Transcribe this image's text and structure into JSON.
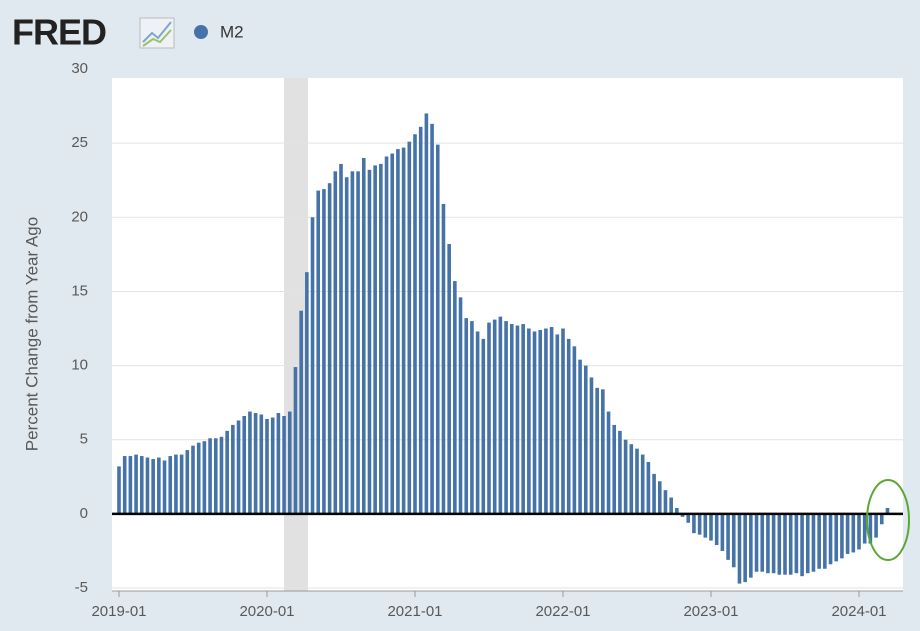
{
  "logo": "FRED",
  "chart_data": {
    "type": "bar",
    "legend": "M2",
    "y_label": "Percent Change from Year Ago",
    "color": "#4572a7",
    "grid": true,
    "ylim": [
      -5.2,
      30
    ],
    "yticks": [
      -5,
      0,
      5,
      10,
      15,
      20,
      25,
      30
    ],
    "categories": [
      "2019-01",
      null,
      null,
      null,
      null,
      null,
      null,
      null,
      null,
      null,
      null,
      null,
      null,
      null,
      null,
      null,
      null,
      null,
      null,
      null,
      null,
      null,
      null,
      null,
      null,
      null,
      "2020-01",
      null,
      null,
      null,
      null,
      null,
      null,
      null,
      null,
      null,
      null,
      null,
      null,
      null,
      null,
      null,
      null,
      null,
      null,
      null,
      null,
      null,
      null,
      null,
      null,
      null,
      "2021-01",
      null,
      null,
      null,
      null,
      null,
      null,
      null,
      null,
      null,
      null,
      null,
      null,
      null,
      null,
      null,
      null,
      null,
      null,
      null,
      null,
      null,
      null,
      null,
      null,
      null,
      "2022-01",
      null,
      null,
      null,
      null,
      null,
      null,
      null,
      null,
      null,
      null,
      null,
      null,
      null,
      null,
      null,
      null,
      null,
      null,
      null,
      null,
      null,
      null,
      null,
      null,
      null,
      "2023-01",
      null,
      null,
      null,
      null,
      null,
      null,
      null,
      null,
      null,
      null,
      null,
      null,
      null,
      null,
      null,
      null,
      null,
      null,
      null,
      null,
      null,
      null,
      null,
      null,
      null,
      "2024-01",
      null,
      null,
      null,
      null,
      null
    ],
    "values": [
      3.2,
      3.9,
      3.9,
      4.0,
      3.9,
      3.8,
      3.7,
      3.8,
      3.6,
      3.9,
      4.0,
      4.0,
      4.3,
      4.6,
      4.8,
      4.9,
      5.1,
      5.1,
      5.2,
      5.6,
      6.0,
      6.3,
      6.6,
      6.9,
      6.8,
      6.7,
      6.4,
      6.5,
      6.8,
      6.6,
      6.9,
      9.9,
      13.7,
      16.3,
      20.0,
      21.8,
      21.9,
      22.3,
      23.1,
      23.6,
      22.7,
      23.1,
      23.1,
      24.0,
      23.2,
      23.5,
      23.6,
      24.1,
      24.3,
      24.6,
      24.7,
      25.1,
      25.6,
      26.1,
      27.0,
      26.3,
      24.9,
      20.9,
      18.2,
      15.7,
      14.6,
      13.2,
      13.0,
      12.3,
      11.8,
      12.9,
      13.1,
      13.3,
      13.0,
      12.8,
      12.7,
      12.8,
      12.5,
      12.3,
      12.4,
      12.5,
      12.6,
      12.1,
      12.5,
      11.8,
      11.3,
      10.4,
      10.0,
      9.2,
      8.5,
      8.4,
      6.9,
      6.0,
      5.6,
      5.0,
      4.7,
      4.4,
      4.0,
      3.5,
      2.7,
      2.2,
      1.6,
      1.1,
      0.4,
      -0.2,
      -0.6,
      -1.3,
      -1.4,
      -1.6,
      -1.8,
      -2.1,
      -2.5,
      -3.1,
      -3.6,
      -4.7,
      -4.6,
      -4.3,
      -3.9,
      -3.9,
      -4.0,
      -4.0,
      -4.1,
      -4.1,
      -4.1,
      -4.0,
      -4.2,
      -4.0,
      -3.9,
      -3.7,
      -3.7,
      -3.4,
      -3.2,
      -3.0,
      -2.7,
      -2.6,
      -2.4,
      -2.0,
      -2.0,
      -1.6,
      -0.7,
      0.4
    ]
  }
}
